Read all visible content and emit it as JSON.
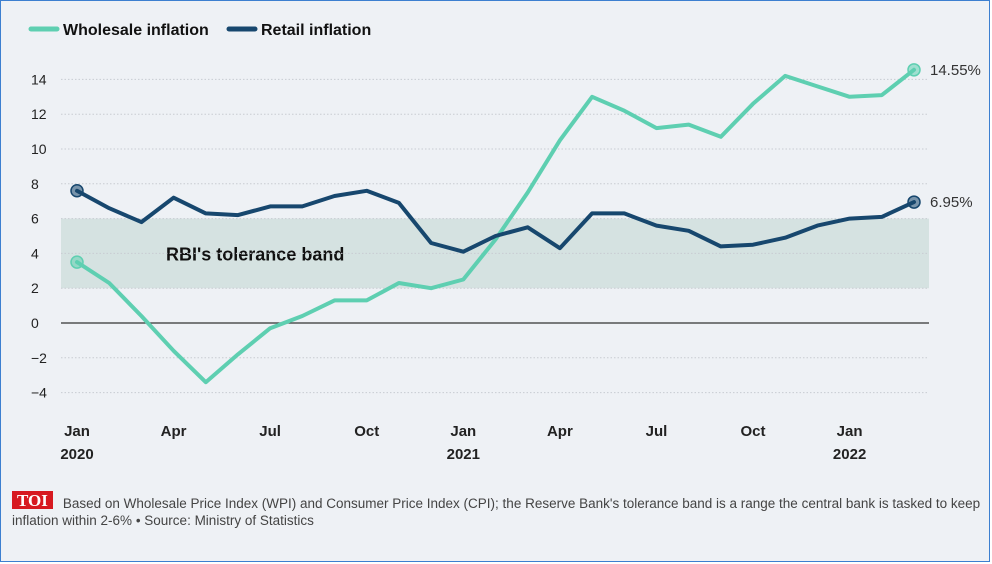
{
  "chart_data": {
    "type": "line",
    "title": "",
    "xlabel": "",
    "ylabel": "",
    "ylim": [
      -4,
      14
    ],
    "yticks": [
      14,
      12,
      10,
      8,
      6,
      4,
      2,
      0,
      -2,
      -4
    ],
    "xtick_labels": [
      {
        "month": 0,
        "line1": "Jan",
        "line2": "2020"
      },
      {
        "month": 3,
        "line1": "Apr",
        "line2": ""
      },
      {
        "month": 6,
        "line1": "Jul",
        "line2": ""
      },
      {
        "month": 9,
        "line1": "Oct",
        "line2": ""
      },
      {
        "month": 12,
        "line1": "Jan",
        "line2": "2021"
      },
      {
        "month": 15,
        "line1": "Apr",
        "line2": ""
      },
      {
        "month": 18,
        "line1": "Jul",
        "line2": ""
      },
      {
        "month": 21,
        "line1": "Oct",
        "line2": ""
      },
      {
        "month": 24,
        "line1": "Jan",
        "line2": "2022"
      }
    ],
    "x_months": [
      "Jan 2020",
      "Feb 2020",
      "Mar 2020",
      "Apr 2020",
      "May 2020",
      "Jun 2020",
      "Jul 2020",
      "Aug 2020",
      "Sep 2020",
      "Oct 2020",
      "Nov 2020",
      "Dec 2020",
      "Jan 2021",
      "Feb 2021",
      "Mar 2021",
      "Apr 2021",
      "May 2021",
      "Jun 2021",
      "Jul 2021",
      "Aug 2021",
      "Sep 2021",
      "Oct 2021",
      "Nov 2021",
      "Dec 2021",
      "Jan 2022",
      "Feb 2022",
      "Mar 2022"
    ],
    "series": [
      {
        "name": "Wholesale inflation",
        "color": "#5ecfb1",
        "values": [
          3.5,
          2.3,
          0.4,
          -1.6,
          -3.4,
          -1.8,
          -0.3,
          0.4,
          1.3,
          1.3,
          2.3,
          2.0,
          2.5,
          4.8,
          7.5,
          10.5,
          13.0,
          12.2,
          11.2,
          11.4,
          10.7,
          12.6,
          14.2,
          13.6,
          13.0,
          13.1,
          14.55
        ],
        "end_label": "14.55%"
      },
      {
        "name": "Retail inflation",
        "color": "#17476e",
        "values": [
          7.6,
          6.6,
          5.8,
          7.2,
          6.3,
          6.2,
          6.7,
          6.7,
          7.3,
          7.6,
          6.9,
          4.6,
          4.1,
          5.0,
          5.5,
          4.3,
          6.3,
          6.3,
          5.6,
          5.3,
          4.4,
          4.5,
          4.9,
          5.6,
          6.0,
          6.1,
          6.95
        ],
        "end_label": "6.95%"
      }
    ],
    "band": {
      "label": "RBI's tolerance band",
      "from": 2,
      "to": 6,
      "color": "#d5e2e1"
    },
    "legend_position": "top-left",
    "grid": true
  },
  "footer": {
    "logo_text": "TOI",
    "note": "Based on Wholesale Price Index (WPI) and Consumer Price Index (CPI); the Reserve Bank's tolerance band is a range the central bank is tasked to keep inflation within 2-6% • Source: Ministry of Statistics"
  }
}
